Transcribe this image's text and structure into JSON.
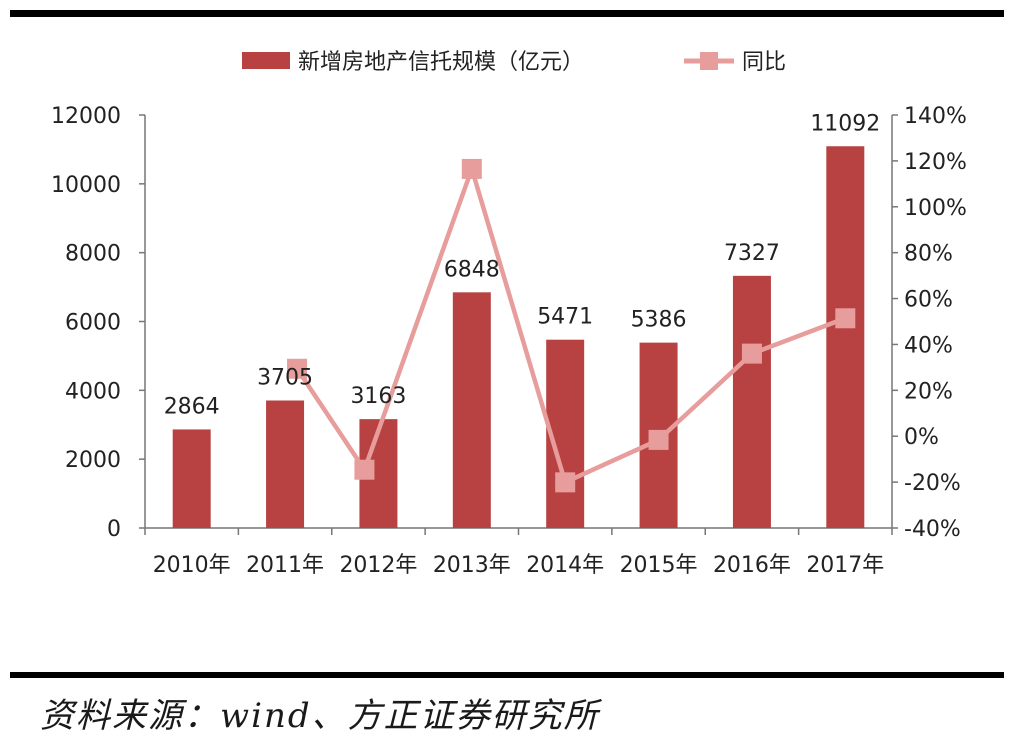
{
  "chart_data": {
    "type": "bar",
    "categories": [
      "2010年",
      "2011年",
      "2012年",
      "2013年",
      "2014年",
      "2015年",
      "2016年",
      "2017年"
    ],
    "series": [
      {
        "name": "新增房地产信托规模（亿元）",
        "type": "bar",
        "axis": "left",
        "values": [
          2864,
          3705,
          3163,
          6848,
          5471,
          5386,
          7327,
          11092
        ],
        "color": "#b84242"
      },
      {
        "name": "同比",
        "type": "line",
        "axis": "right",
        "values": [
          null,
          29.4,
          -14.6,
          116.5,
          -20.1,
          -1.6,
          36.0,
          51.4
        ],
        "color": "#e79d9b"
      }
    ],
    "left_axis": {
      "min": 0,
      "max": 12000,
      "step": 2000,
      "ticks": [
        "0",
        "2000",
        "4000",
        "6000",
        "8000",
        "10000",
        "12000"
      ]
    },
    "right_axis": {
      "min": -40,
      "max": 140,
      "step": 20,
      "ticks": [
        "-40%",
        "-20%",
        "0%",
        "20%",
        "40%",
        "60%",
        "80%",
        "100%",
        "120%",
        "140%"
      ]
    },
    "data_labels": [
      "2864",
      "3705",
      "3163",
      "6848",
      "5471",
      "5386",
      "7327",
      "11092"
    ],
    "legend_position": "top",
    "grid": false
  },
  "source_note": "资料来源：wind、方正证券研究所"
}
